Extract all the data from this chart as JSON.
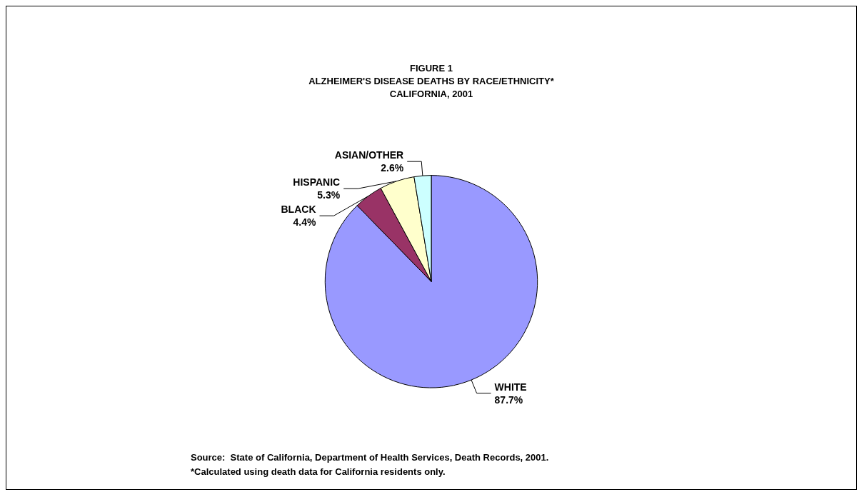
{
  "chart_data": {
    "type": "pie",
    "title": "FIGURE 1\nALZHEIMER'S DISEASE DEATHS BY RACE/ETHNICITY*\nCALIFORNIA, 2001",
    "categories": [
      "WHITE",
      "BLACK",
      "HISPANIC",
      "ASIAN/OTHER"
    ],
    "values": [
      87.7,
      4.4,
      5.3,
      2.6
    ],
    "value_labels": [
      "87.7%",
      "4.4%",
      "5.3%",
      "2.6%"
    ],
    "colors": [
      "#9999ff",
      "#993366",
      "#ffffcc",
      "#ccffff"
    ],
    "legend": false,
    "annotations": [
      "Source:  State of California, Department of Health Services, Death Records, 2001.",
      "*Calculated using death data for California residents only."
    ]
  }
}
